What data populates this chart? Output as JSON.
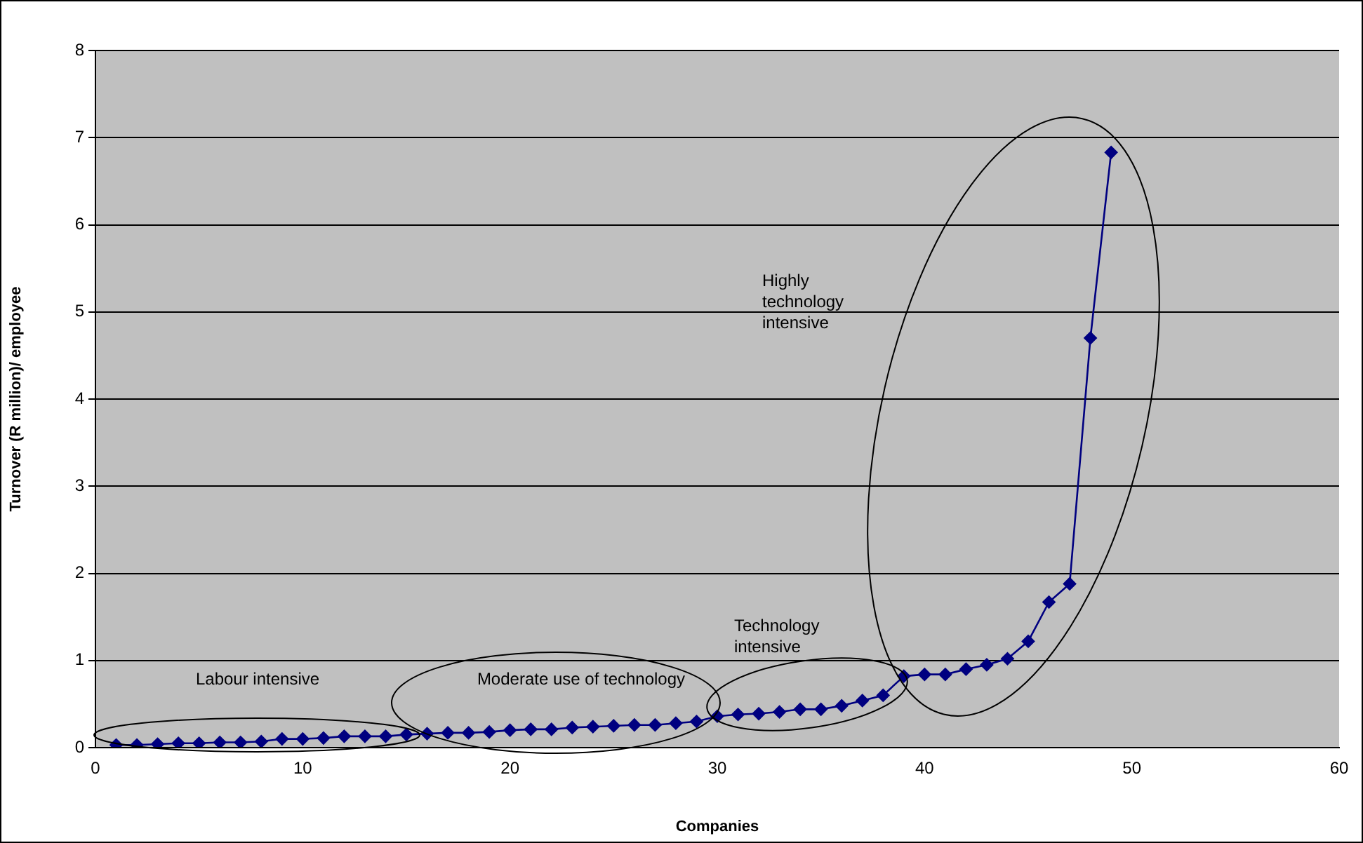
{
  "chart_data": {
    "type": "line",
    "xlabel": "Companies",
    "ylabel": "Turnover (R million)/ employee",
    "x": [
      1,
      2,
      3,
      4,
      5,
      6,
      7,
      8,
      9,
      10,
      11,
      12,
      13,
      14,
      15,
      16,
      17,
      18,
      19,
      20,
      21,
      22,
      23,
      24,
      25,
      26,
      27,
      28,
      29,
      30,
      31,
      32,
      33,
      34,
      35,
      36,
      37,
      38,
      39,
      40,
      41,
      42,
      43,
      44,
      45,
      46,
      47,
      48,
      49
    ],
    "series": [
      {
        "color": "#000080",
        "values": [
          0.03,
          0.03,
          0.04,
          0.05,
          0.05,
          0.06,
          0.06,
          0.07,
          0.1,
          0.1,
          0.11,
          0.13,
          0.13,
          0.13,
          0.15,
          0.16,
          0.17,
          0.17,
          0.18,
          0.2,
          0.21,
          0.21,
          0.23,
          0.24,
          0.25,
          0.26,
          0.26,
          0.28,
          0.3,
          0.36,
          0.38,
          0.39,
          0.41,
          0.44,
          0.44,
          0.48,
          0.54,
          0.6,
          0.82,
          0.84,
          0.84,
          0.9,
          0.95,
          1.02,
          1.22,
          1.67,
          1.88,
          4.7,
          6.83
        ]
      }
    ],
    "xlim": [
      0,
      60
    ],
    "xticks": [
      0,
      10,
      20,
      30,
      40,
      50,
      60
    ],
    "ylim": [
      0,
      8
    ],
    "yticks": [
      0,
      1,
      2,
      3,
      4,
      5,
      6,
      7,
      8
    ],
    "grid": "y",
    "legend": false,
    "marker": "diamond",
    "line_style": "solid",
    "annotations": [
      "Labour intensive",
      "Moderate use of technology",
      "Technology intensive",
      "Highly technology intensive"
    ]
  }
}
